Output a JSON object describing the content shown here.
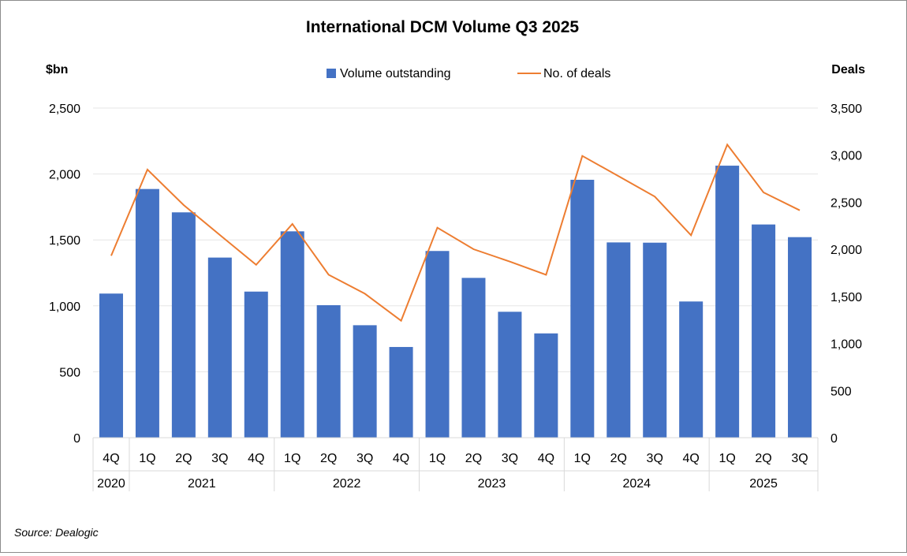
{
  "chart_data": {
    "type": "bar",
    "title": "International DCM Volume Q3 2025",
    "ylabel_left": "$bn",
    "ylabel_right": "Deals",
    "source": "Source: Dealogic",
    "legend_position": "top",
    "grid": true,
    "ylim_left": [
      0,
      2500
    ],
    "yticks_left": [
      "0",
      "500",
      "1,000",
      "1,500",
      "2,000",
      "2,500"
    ],
    "ylim_right": [
      0,
      3500
    ],
    "yticks_right": [
      "0",
      "500",
      "1,000",
      "1,500",
      "2,000",
      "2,500",
      "3,000",
      "3,500"
    ],
    "categories": [
      "4Q",
      "1Q",
      "2Q",
      "3Q",
      "4Q",
      "1Q",
      "2Q",
      "3Q",
      "4Q",
      "1Q",
      "2Q",
      "3Q",
      "4Q",
      "1Q",
      "2Q",
      "3Q",
      "4Q",
      "1Q",
      "2Q",
      "3Q"
    ],
    "year_groups": [
      {
        "label": "2020",
        "count": 1
      },
      {
        "label": "2021",
        "count": 4
      },
      {
        "label": "2022",
        "count": 4
      },
      {
        "label": "2023",
        "count": 4
      },
      {
        "label": "2024",
        "count": 4
      },
      {
        "label": "2025",
        "count": 3
      }
    ],
    "series": [
      {
        "name": "Volume outstanding",
        "type": "bar",
        "axis": "left",
        "color": "#4472C4",
        "values": [
          1093,
          1886,
          1709,
          1366,
          1108,
          1565,
          1005,
          853,
          688,
          1416,
          1212,
          955,
          791,
          1956,
          1481,
          1479,
          1033,
          2063,
          1617,
          1521
        ]
      },
      {
        "name": "No. of deals",
        "type": "line",
        "axis": "right",
        "color": "#ED7D31",
        "values": [
          1932,
          2847,
          2470,
          2152,
          1836,
          2269,
          1730,
          1529,
          1242,
          2230,
          2001,
          1870,
          1730,
          2992,
          2777,
          2560,
          2149,
          3112,
          2604,
          2414
        ]
      }
    ]
  }
}
